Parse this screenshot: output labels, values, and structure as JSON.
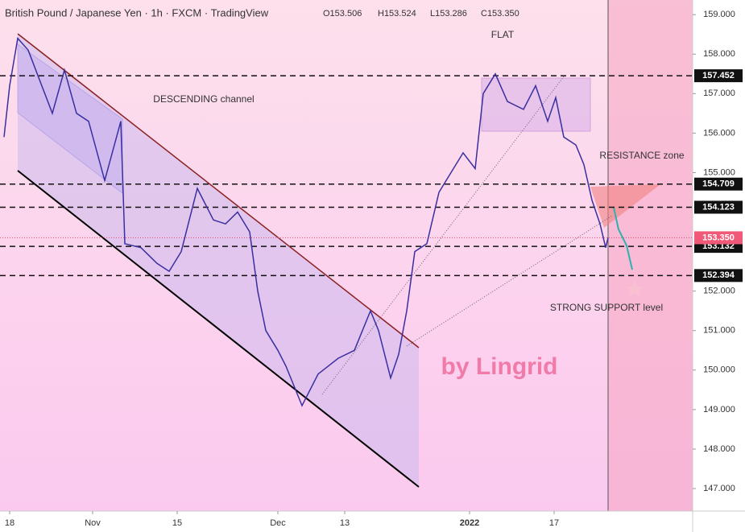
{
  "chart_data": {
    "type": "line",
    "title": "British Pound / Japanese Yen · 1h · FXCM · TradingView",
    "ohlc_labels": [
      "O153.506",
      "H153.524",
      "L153.286",
      "C153.350"
    ],
    "xlim": [
      0,
      860
    ],
    "ylim": [
      146.43,
      159.37
    ],
    "xticks": [
      {
        "value": 12,
        "label": "18"
      },
      {
        "value": 115,
        "label": "Nov"
      },
      {
        "value": 220,
        "label": "15"
      },
      {
        "value": 345,
        "label": "Dec"
      },
      {
        "value": 428,
        "label": "13"
      },
      {
        "value": 583,
        "label": "2022"
      },
      {
        "value": 688,
        "label": "17"
      }
    ],
    "yticks": [
      {
        "value": 147,
        "label": "147.000"
      },
      {
        "value": 148,
        "label": "148.000"
      },
      {
        "value": 149,
        "label": "149.000"
      },
      {
        "value": 150,
        "label": "150.000"
      },
      {
        "value": 151,
        "label": "151.000"
      },
      {
        "value": 152,
        "label": "152.000"
      },
      {
        "value": 155,
        "label": "155.000"
      },
      {
        "value": 156,
        "label": "156.000"
      },
      {
        "value": 157,
        "label": "157.000"
      },
      {
        "value": 158,
        "label": "158.000"
      },
      {
        "value": 159,
        "label": "159.000"
      }
    ],
    "series": [
      {
        "name": "GBPJPY",
        "color": "#3a2fa0",
        "x": [
          5,
          12,
          22,
          35,
          50,
          65,
          80,
          95,
          110,
          130,
          150,
          155,
          175,
          195,
          210,
          225,
          245,
          265,
          280,
          295,
          310,
          320,
          330,
          345,
          355,
          375,
          395,
          420,
          440,
          460,
          470,
          485,
          495,
          505,
          515,
          530,
          545,
          560,
          575,
          590,
          600,
          615,
          630,
          650,
          665,
          680,
          690,
          700,
          715,
          725,
          735,
          745,
          752,
          755
        ],
        "values": [
          155.9,
          157.2,
          158.4,
          158.1,
          157.3,
          156.5,
          157.6,
          156.5,
          156.3,
          154.8,
          156.3,
          153.2,
          153.1,
          152.7,
          152.5,
          153.0,
          154.6,
          153.8,
          153.7,
          154.0,
          153.5,
          152.0,
          151.0,
          150.5,
          150.1,
          149.1,
          149.9,
          150.3,
          150.5,
          151.5,
          151.0,
          149.8,
          150.4,
          151.5,
          153.0,
          153.2,
          154.5,
          155.0,
          155.5,
          155.1,
          157.0,
          157.5,
          156.8,
          156.6,
          157.2,
          156.3,
          156.9,
          155.9,
          155.7,
          155.2,
          154.3,
          153.7,
          153.1,
          153.35
        ]
      }
    ],
    "levels": [
      157.452,
      154.709,
      154.123,
      {
        "value": 153.132,
        "label": "153.132"
      },
      152.394
    ],
    "current_price": {
      "value": 153.35,
      "label": "153.350"
    },
    "annotations": [
      "FLAT",
      "DESCENDING channel",
      "RESISTANCE zone",
      "STRONG SUPPORT level",
      "by Lingrid"
    ]
  }
}
